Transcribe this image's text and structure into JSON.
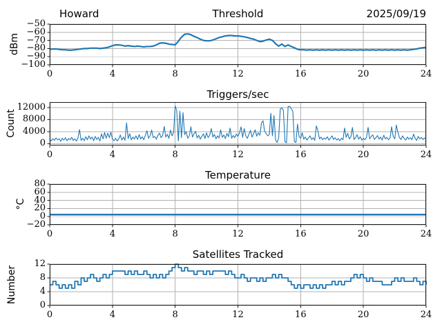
{
  "figure": {
    "background": "#ffffff",
    "accent_color": "#1f77b4",
    "grid_color": "#b0b0b0",
    "spine_color": "#1a1a1a",
    "text_color": "#000000"
  },
  "chart_data": [
    {
      "type": "line",
      "title": "Threshold",
      "title_left": "Howard",
      "title_right": "2025/09/19",
      "ylabel": "dBm",
      "xlabel": "",
      "xlim": [
        0,
        24
      ],
      "ylim": [
        -100,
        -50
      ],
      "xticks": [
        0,
        4,
        8,
        12,
        16,
        20,
        24
      ],
      "yticks": [
        -100,
        -90,
        -80,
        -70,
        -60,
        -50
      ],
      "grid": true,
      "x_start": 0,
      "x_step": 0.2,
      "values": [
        -81,
        -80.5,
        -80.5,
        -81,
        -81.5,
        -81.5,
        -82,
        -82,
        -81.5,
        -81,
        -80.5,
        -80,
        -80,
        -79.5,
        -79.5,
        -79.5,
        -80,
        -79.5,
        -79,
        -78,
        -76.5,
        -75.5,
        -75.5,
        -76,
        -77,
        -76.5,
        -77,
        -77.5,
        -77,
        -77.5,
        -78,
        -77.5,
        -77.5,
        -77,
        -75.5,
        -73.5,
        -73,
        -73.5,
        -74.5,
        -75,
        -75.5,
        -71,
        -66,
        -62.5,
        -62,
        -63,
        -65,
        -66.5,
        -68.5,
        -70,
        -70.5,
        -70.5,
        -69.5,
        -68,
        -66.5,
        -65.5,
        -64.5,
        -64,
        -64,
        -64.5,
        -64.5,
        -65,
        -65.5,
        -66.5,
        -67.5,
        -68.5,
        -70,
        -71.5,
        -71,
        -69.5,
        -68.5,
        -70,
        -74,
        -77,
        -74.5,
        -77.5,
        -75.5,
        -77.5,
        -79,
        -81,
        -81.5,
        -81.5,
        -82,
        -81.5,
        -82,
        -81.5,
        -82,
        -81.5,
        -82,
        -81.5,
        -82,
        -81.5,
        -82,
        -81.5,
        -82,
        -81.5,
        -82,
        -81.5,
        -82,
        -81.5,
        -82,
        -81.5,
        -82,
        -81.5,
        -82,
        -81.5,
        -82,
        -81.5,
        -82,
        -81.5,
        -82,
        -81.5,
        -82,
        -81.5,
        -82,
        -81.5,
        -81,
        -80.5,
        -79.5,
        -79,
        -78.5
      ]
    },
    {
      "type": "line",
      "title": "Triggers/sec",
      "ylabel": "Count",
      "xlabel": "",
      "xlim": [
        0,
        24
      ],
      "ylim": [
        -600,
        13800
      ],
      "xticks": [
        0,
        4,
        8,
        12,
        16,
        20,
        24
      ],
      "yticks": [
        0,
        4000,
        8000,
        12000
      ],
      "grid": true,
      "x_start": 0,
      "x_step": 0.1,
      "values": [
        1500,
        900,
        1700,
        1100,
        1900,
        1300,
        1600,
        800,
        1800,
        1200,
        2000,
        1000,
        1700,
        1300,
        2100,
        1100,
        1600,
        900,
        1900,
        4700,
        1100,
        1800,
        1000,
        2300,
        1300,
        2600,
        1500,
        2200,
        1000,
        2400,
        1400,
        2100,
        900,
        3300,
        1600,
        3700,
        1800,
        3500,
        2000,
        3800,
        1500,
        1000,
        1800,
        900,
        1600,
        2900,
        1200,
        2200,
        1100,
        6900,
        1700,
        3300,
        1300,
        2200,
        1500,
        2600,
        1400,
        3000,
        1600,
        2300,
        1300,
        2800,
        4300,
        1800,
        2600,
        4500,
        2000,
        2400,
        1500,
        2800,
        3500,
        2000,
        2700,
        5700,
        2200,
        3100,
        1800,
        4500,
        2600,
        3800,
        12500,
        11000,
        900,
        10800,
        2000,
        10300,
        3000,
        4000,
        1800,
        2600,
        5600,
        2200,
        3300,
        4100,
        1900,
        2800,
        1500,
        2400,
        3300,
        1700,
        3600,
        2000,
        2800,
        5000,
        2200,
        3100,
        1600,
        2600,
        1900,
        4600,
        2100,
        2900,
        1700,
        3400,
        2300,
        5200,
        1800,
        2700,
        2000,
        3200,
        2400,
        3600,
        5600,
        2100,
        5000,
        2600,
        1800,
        3100,
        4400,
        2200,
        3300,
        4600,
        2500,
        3600,
        2800,
        6800,
        7600,
        4200,
        3400,
        2600,
        3000,
        10100,
        2600,
        9300,
        1200,
        400,
        2000,
        11500,
        11900,
        11000,
        600,
        300,
        12300,
        12400,
        11600,
        10800,
        700,
        400,
        6500,
        2400,
        1800,
        3600,
        1500,
        2200,
        1200,
        1900,
        2600,
        1400,
        2000,
        1100,
        5900,
        4300,
        1600,
        2200,
        1300,
        1900,
        1500,
        2300,
        1200,
        1800,
        2600,
        1400,
        2000,
        1200,
        1700,
        1000,
        1800,
        1300,
        5200,
        2100,
        3400,
        1600,
        2200,
        5400,
        1400,
        2000,
        3000,
        1500,
        2300,
        1200,
        1800,
        1300,
        2100,
        5400,
        1600,
        2400,
        2900,
        1400,
        2000,
        2700,
        1500,
        2200,
        1200,
        2800,
        1600,
        2100,
        1300,
        1900,
        5600,
        2400,
        1600,
        6200,
        3800,
        2000,
        1400,
        2600,
        1700,
        1200,
        2200,
        1500,
        2000,
        1300,
        3200,
        1800,
        1100,
        2400,
        1600,
        2100,
        1400,
        1900,
        1600
      ]
    },
    {
      "type": "line",
      "title": "Temperature",
      "ylabel": "°C",
      "xlabel": "",
      "xlim": [
        0,
        24
      ],
      "ylim": [
        -20,
        80
      ],
      "xticks": [
        0,
        4,
        8,
        12,
        16,
        20,
        24
      ],
      "yticks": [
        -20,
        0,
        20,
        40,
        60,
        80
      ],
      "grid": true,
      "x_start": 0,
      "x_step": 24,
      "values": [
        5,
        5
      ]
    },
    {
      "type": "step",
      "title": "Satellites Tracked",
      "ylabel": "Number",
      "xlabel": "",
      "xlim": [
        0,
        24
      ],
      "ylim": [
        0,
        12
      ],
      "xticks": [
        0,
        4,
        8,
        12,
        16,
        20,
        24
      ],
      "yticks": [
        0,
        4,
        8,
        12
      ],
      "grid": true,
      "x_start": 0,
      "x_step": 0.2,
      "values": [
        6,
        7,
        6,
        5,
        6,
        5,
        6,
        5,
        7,
        6,
        8,
        7,
        8,
        9,
        8,
        7,
        8,
        9,
        8,
        9,
        10,
        10,
        10,
        10,
        9,
        10,
        9,
        10,
        9,
        9,
        10,
        9,
        8,
        9,
        8,
        9,
        8,
        9,
        10,
        11,
        12,
        11,
        10,
        11,
        10,
        10,
        9,
        10,
        10,
        9,
        10,
        9,
        10,
        10,
        10,
        10,
        9,
        10,
        9,
        8,
        8,
        9,
        8,
        7,
        8,
        8,
        7,
        8,
        7,
        8,
        8,
        9,
        8,
        9,
        8,
        8,
        7,
        6,
        5,
        6,
        5,
        6,
        6,
        5,
        6,
        5,
        6,
        5,
        6,
        6,
        7,
        6,
        7,
        6,
        7,
        7,
        8,
        9,
        8,
        9,
        8,
        7,
        8,
        7,
        7,
        7,
        6,
        6,
        6,
        7,
        8,
        7,
        8,
        7,
        7,
        7,
        8,
        7,
        6,
        7,
        6
      ]
    }
  ]
}
